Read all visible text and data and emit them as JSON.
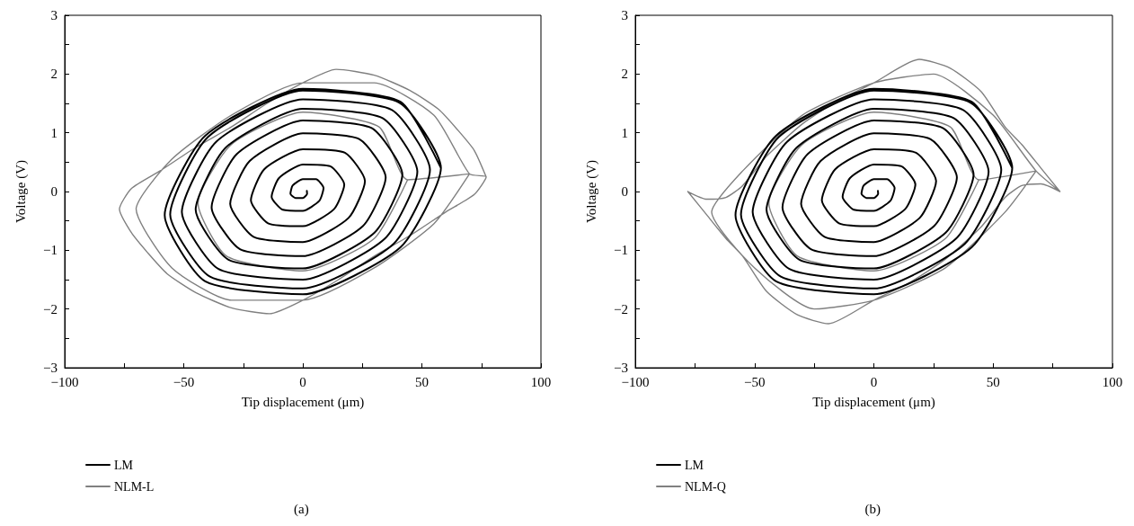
{
  "chart_data": [
    {
      "type": "line",
      "xlabel": "Tip displacement (μm)",
      "ylabel": "Voltage (V)",
      "xlim": [
        -100,
        100
      ],
      "ylim": [
        -3,
        3
      ],
      "xticks": [
        {
          "value": -100,
          "label": "−100"
        },
        {
          "value": -75,
          "label": null
        },
        {
          "value": -50,
          "label": "−50"
        },
        {
          "value": -25,
          "label": null
        },
        0,
        {
          "value": 25,
          "label": null
        },
        50,
        {
          "value": 75,
          "label": null
        },
        100
      ],
      "yticks": [
        {
          "value": -3,
          "label": "−3"
        },
        {
          "value": -2.5,
          "label": null
        },
        {
          "value": -2,
          "label": "−2"
        },
        {
          "value": -1.5,
          "label": null
        },
        {
          "value": -1,
          "label": "−1"
        },
        {
          "value": -0.5,
          "label": null
        },
        0,
        {
          "value": 0.5,
          "label": null
        },
        1,
        {
          "value": 1.5,
          "label": null
        },
        2,
        {
          "value": 2.5,
          "label": null
        },
        3
      ],
      "marker": "none",
      "legend": "bottom left",
      "annotations": [
        "(a)"
      ],
      "series": [
        {
          "name": "NLM-L",
          "color": "#808080",
          "x": [
            44,
            30,
            0,
            -32,
            -44,
            -30,
            0,
            32,
            44,
            70,
            55,
            30,
            0,
            -30,
            -55,
            -70,
            -55,
            -30,
            0,
            30,
            55,
            70,
            77,
            72,
            60,
            45,
            30,
            15,
            0,
            -14,
            -30,
            -45,
            -57,
            -65,
            -72,
            -77,
            -72,
            -60,
            -45,
            -30,
            -15,
            0,
            14,
            30,
            45,
            57,
            65,
            72,
            77
          ],
          "values": [
            0.2,
            -0.8,
            -1.35,
            -1.1,
            -0.2,
            0.8,
            1.35,
            1.1,
            0.2,
            0.3,
            -0.55,
            -1.3,
            -1.85,
            -1.85,
            -1.3,
            -0.3,
            0.55,
            1.3,
            1.85,
            1.85,
            1.3,
            0.3,
            0.25,
            -0.05,
            -0.35,
            -0.75,
            -1.1,
            -1.5,
            -1.85,
            -2.08,
            -1.98,
            -1.72,
            -1.4,
            -1.05,
            -0.7,
            -0.3,
            0.05,
            0.35,
            0.75,
            1.1,
            1.5,
            1.85,
            2.08,
            1.98,
            1.72,
            1.4,
            1.05,
            0.7,
            0.25
          ]
        },
        {
          "name": "LM",
          "color": "#000000",
          "x": [
            1.7,
            1.8,
            0,
            -3.1,
            -5.2,
            -4.3,
            0,
            5.5,
            8.7,
            6.9,
            0,
            -8.4,
            -13.1,
            -10,
            0,
            11.5,
            17.4,
            13.1,
            0,
            -14.6,
            -21.8,
            -16.2,
            0,
            17.7,
            26.1,
            19.2,
            0,
            -20.7,
            -30.5,
            -22.3,
            0,
            23.8,
            34.8,
            25.2,
            0,
            -26.4,
            -38.3,
            -27.7,
            0,
            28.9,
            41.8,
            30.1,
            0,
            -31.2,
            -45,
            -32.3,
            0,
            33.5,
            48.1,
            34.5,
            0,
            -35.4,
            -50.8,
            -36.3,
            0,
            37.3,
            53.4,
            38.1,
            0,
            -39,
            -55.7,
            -39.8,
            0,
            40.6,
            58,
            41,
            0,
            -41,
            -58,
            -41,
            0,
            41,
            58
          ],
          "values": [
            0.01,
            -0.04,
            -0.11,
            -0.11,
            -0.04,
            0.1,
            0.21,
            0.21,
            0.06,
            -0.16,
            -0.33,
            -0.31,
            -0.09,
            0.23,
            0.46,
            0.43,
            0.12,
            -0.3,
            -0.59,
            -0.54,
            -0.15,
            0.38,
            0.72,
            0.66,
            0.18,
            -0.45,
            -0.86,
            -0.77,
            -0.21,
            0.52,
            0.99,
            0.89,
            0.24,
            -0.59,
            -1.1,
            -0.98,
            -0.27,
            0.64,
            1.21,
            1.08,
            0.29,
            -0.7,
            -1.31,
            -1.16,
            -0.31,
            0.75,
            1.41,
            1.25,
            0.34,
            -0.8,
            -1.5,
            -1.32,
            -0.35,
            0.85,
            1.57,
            1.39,
            0.37,
            -0.89,
            -1.65,
            -1.45,
            -0.39,
            0.93,
            1.72,
            1.51,
            0.4,
            -0.95,
            -1.75,
            -1.53,
            -0.4,
            0.95,
            1.75,
            1.53,
            0.4
          ]
        }
      ]
    },
    {
      "type": "line",
      "xlabel": "Tip displacement (μm)",
      "ylabel": "Voltage (V)",
      "xlim": [
        -100,
        100
      ],
      "ylim": [
        -3,
        3
      ],
      "xticks": [
        {
          "value": -100,
          "label": "−100"
        },
        {
          "value": -75,
          "label": null
        },
        {
          "value": -50,
          "label": "−50"
        },
        {
          "value": -25,
          "label": null
        },
        0,
        {
          "value": 25,
          "label": null
        },
        50,
        {
          "value": 75,
          "label": null
        },
        100
      ],
      "yticks": [
        {
          "value": -3,
          "label": "−3"
        },
        {
          "value": -2.5,
          "label": null
        },
        {
          "value": -2,
          "label": "−2"
        },
        {
          "value": -1.5,
          "label": null
        },
        {
          "value": -1,
          "label": "−1"
        },
        {
          "value": -0.5,
          "label": null
        },
        0,
        {
          "value": 0.5,
          "label": null
        },
        1,
        {
          "value": 1.5,
          "label": null
        },
        2,
        {
          "value": 2.5,
          "label": null
        },
        3
      ],
      "marker": "none",
      "legend": "bottom left",
      "annotations": [
        "(b)"
      ],
      "series": [
        {
          "name": "NLM-Q",
          "color": "#808080",
          "x": [
            44,
            30,
            0,
            -32,
            -44,
            -30,
            0,
            32,
            44,
            68,
            55,
            30,
            0,
            -25,
            -50,
            -68,
            -55,
            -30,
            0,
            25,
            50,
            68,
            78,
            70,
            62,
            55,
            45,
            30,
            15,
            0,
            -19,
            -32,
            -45,
            -55,
            -62,
            -70,
            -78,
            -70,
            -62,
            -55,
            -45,
            -30,
            -15,
            0,
            19,
            32,
            45,
            55,
            62,
            70,
            78
          ],
          "values": [
            0.2,
            -0.8,
            -1.35,
            -1.1,
            -0.2,
            0.8,
            1.35,
            1.1,
            0.2,
            0.35,
            -0.35,
            -1.3,
            -1.85,
            -2.0,
            -1.3,
            -0.35,
            0.35,
            1.3,
            1.85,
            2.0,
            1.3,
            0.35,
            0,
            0.13,
            0.1,
            -0.1,
            -0.6,
            -1.15,
            -1.55,
            -1.85,
            -2.25,
            -2.1,
            -1.7,
            -1.1,
            -0.8,
            -0.4,
            0,
            -0.13,
            -0.1,
            0.1,
            0.6,
            1.15,
            1.55,
            1.85,
            2.25,
            2.1,
            1.7,
            1.1,
            0.8,
            0.4,
            0
          ]
        },
        {
          "name": "LM",
          "color": "#000000",
          "x": [
            1.7,
            1.8,
            0,
            -3.1,
            -5.2,
            -4.3,
            0,
            5.5,
            8.7,
            6.9,
            0,
            -8.4,
            -13.1,
            -10,
            0,
            11.5,
            17.4,
            13.1,
            0,
            -14.6,
            -21.8,
            -16.2,
            0,
            17.7,
            26.1,
            19.2,
            0,
            -20.7,
            -30.5,
            -22.3,
            0,
            23.8,
            34.8,
            25.2,
            0,
            -26.4,
            -38.3,
            -27.7,
            0,
            28.9,
            41.8,
            30.1,
            0,
            -31.2,
            -45,
            -32.3,
            0,
            33.5,
            48.1,
            34.5,
            0,
            -35.4,
            -50.8,
            -36.3,
            0,
            37.3,
            53.4,
            38.1,
            0,
            -39,
            -55.7,
            -39.8,
            0,
            40.6,
            58,
            41,
            0,
            -41,
            -58,
            -41,
            0,
            41,
            58
          ],
          "values": [
            0.01,
            -0.04,
            -0.11,
            -0.11,
            -0.04,
            0.1,
            0.21,
            0.21,
            0.06,
            -0.16,
            -0.33,
            -0.31,
            -0.09,
            0.23,
            0.46,
            0.43,
            0.12,
            -0.3,
            -0.59,
            -0.54,
            -0.15,
            0.38,
            0.72,
            0.66,
            0.18,
            -0.45,
            -0.86,
            -0.77,
            -0.21,
            0.52,
            0.99,
            0.89,
            0.24,
            -0.59,
            -1.1,
            -0.98,
            -0.27,
            0.64,
            1.21,
            1.08,
            0.29,
            -0.7,
            -1.31,
            -1.16,
            -0.31,
            0.75,
            1.41,
            1.25,
            0.34,
            -0.8,
            -1.5,
            -1.32,
            -0.35,
            0.85,
            1.57,
            1.39,
            0.37,
            -0.89,
            -1.65,
            -1.45,
            -0.39,
            0.93,
            1.72,
            1.51,
            0.4,
            -0.95,
            -1.75,
            -1.53,
            -0.4,
            0.95,
            1.75,
            1.53,
            0.4
          ]
        }
      ]
    }
  ]
}
